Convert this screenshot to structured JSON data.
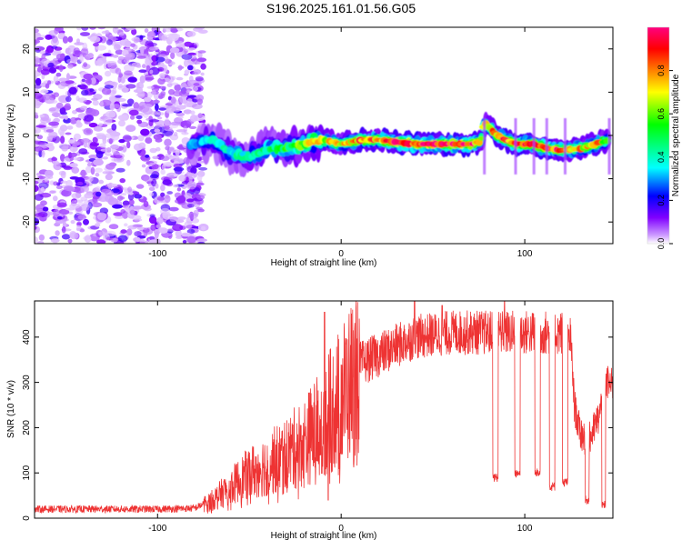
{
  "title": "S196.2025.161.01.56.G05",
  "chart_data": [
    {
      "type": "heatmap",
      "xlabel": "Height of straight line (km)",
      "ylabel": "Frequency (Hz)",
      "xlim": [
        -167,
        148
      ],
      "ylim": [
        -25,
        25
      ],
      "x_ticks": [
        -100,
        0,
        100
      ],
      "y_ticks": [
        -20,
        -10,
        0,
        10,
        20
      ],
      "colorbar": {
        "label": "Normalized spectral amplitude",
        "range": [
          0,
          1
        ],
        "ticks": [
          0.0,
          0.2,
          0.4,
          0.6,
          0.8
        ],
        "colors": [
          "#ffffff",
          "#cc99ff",
          "#8000ff",
          "#0000ff",
          "#00ffff",
          "#00ff80",
          "#00ff00",
          "#ffff00",
          "#ff8000",
          "#ff0000",
          "#ff0080"
        ]
      },
      "noise_region": {
        "x": [
          -167,
          -75
        ],
        "freq": [
          -25,
          25
        ],
        "amplitude": 0.15
      },
      "ridge": [
        {
          "x": -82,
          "freq": -2,
          "amp": 0.3
        },
        {
          "x": -70,
          "freq": -1,
          "amp": 0.35
        },
        {
          "x": -60,
          "freq": -4,
          "amp": 0.4
        },
        {
          "x": -50,
          "freq": -5,
          "amp": 0.4
        },
        {
          "x": -40,
          "freq": -3,
          "amp": 0.45
        },
        {
          "x": -30,
          "freq": -3,
          "amp": 0.5
        },
        {
          "x": -20,
          "freq": -2,
          "amp": 0.6
        },
        {
          "x": -10,
          "freq": -1,
          "amp": 0.7
        },
        {
          "x": 0,
          "freq": -2,
          "amp": 0.7
        },
        {
          "x": 10,
          "freq": -1,
          "amp": 0.8
        },
        {
          "x": 20,
          "freq": -1,
          "amp": 0.8
        },
        {
          "x": 30,
          "freq": -1.5,
          "amp": 0.85
        },
        {
          "x": 40,
          "freq": -2,
          "amp": 0.9
        },
        {
          "x": 50,
          "freq": -2,
          "amp": 0.95
        },
        {
          "x": 60,
          "freq": -2,
          "amp": 0.95
        },
        {
          "x": 70,
          "freq": -2,
          "amp": 0.9
        },
        {
          "x": 76,
          "freq": -1.5,
          "amp": 0.7
        },
        {
          "x": 78,
          "freq": 3,
          "amp": 0.7
        },
        {
          "x": 85,
          "freq": 0,
          "amp": 0.8
        },
        {
          "x": 95,
          "freq": -2,
          "amp": 0.9
        },
        {
          "x": 105,
          "freq": -2,
          "amp": 0.8
        },
        {
          "x": 112,
          "freq": -3,
          "amp": 0.9
        },
        {
          "x": 120,
          "freq": -3.5,
          "amp": 0.8
        },
        {
          "x": 130,
          "freq": -3,
          "amp": 0.7
        },
        {
          "x": 138,
          "freq": -2,
          "amp": 0.8
        },
        {
          "x": 146,
          "freq": -1,
          "amp": 0.6
        }
      ]
    },
    {
      "type": "line",
      "xlabel": "Height of straight line (km)",
      "ylabel": "SNR (10 * v/v)",
      "xlim": [
        -167,
        148
      ],
      "ylim": [
        0,
        480
      ],
      "x_ticks": [
        -100,
        0,
        100
      ],
      "y_ticks": [
        0,
        100,
        200,
        300,
        400
      ],
      "color": "#ee3333",
      "trend": [
        [
          -167,
          20
        ],
        [
          -100,
          20
        ],
        [
          -80,
          22
        ],
        [
          -70,
          40
        ],
        [
          -60,
          70
        ],
        [
          -50,
          100
        ],
        [
          -40,
          120
        ],
        [
          -30,
          140
        ],
        [
          -20,
          170
        ],
        [
          -15,
          190
        ],
        [
          -10,
          210
        ],
        [
          -5,
          240
        ],
        [
          0,
          270
        ],
        [
          5,
          300
        ],
        [
          10,
          340
        ],
        [
          20,
          360
        ],
        [
          30,
          380
        ],
        [
          40,
          400
        ],
        [
          60,
          410
        ],
        [
          80,
          410
        ],
        [
          100,
          410
        ],
        [
          120,
          410
        ],
        [
          125,
          400
        ],
        [
          127,
          250
        ],
        [
          130,
          190
        ],
        [
          135,
          170
        ],
        [
          140,
          220
        ],
        [
          145,
          300
        ],
        [
          148,
          290
        ]
      ],
      "dips": [
        {
          "x": 84,
          "y": 90,
          "width": 1.5
        },
        {
          "x": 96,
          "y": 100,
          "width": 1.5
        },
        {
          "x": 107,
          "y": 100,
          "width": 1.5
        },
        {
          "x": 115,
          "y": 70,
          "width": 1.5
        },
        {
          "x": 122,
          "y": 80,
          "width": 1.5
        },
        {
          "x": 134,
          "y": 40,
          "width": 1.0
        },
        {
          "x": 143,
          "y": 30,
          "width": 1.0
        }
      ],
      "spikes": [
        {
          "x": -9,
          "y": 455
        },
        {
          "x": -7,
          "y": 40
        },
        {
          "x": 40,
          "y": 480
        },
        {
          "x": 55,
          "y": 470
        },
        {
          "x": 89,
          "y": 480
        }
      ]
    }
  ]
}
